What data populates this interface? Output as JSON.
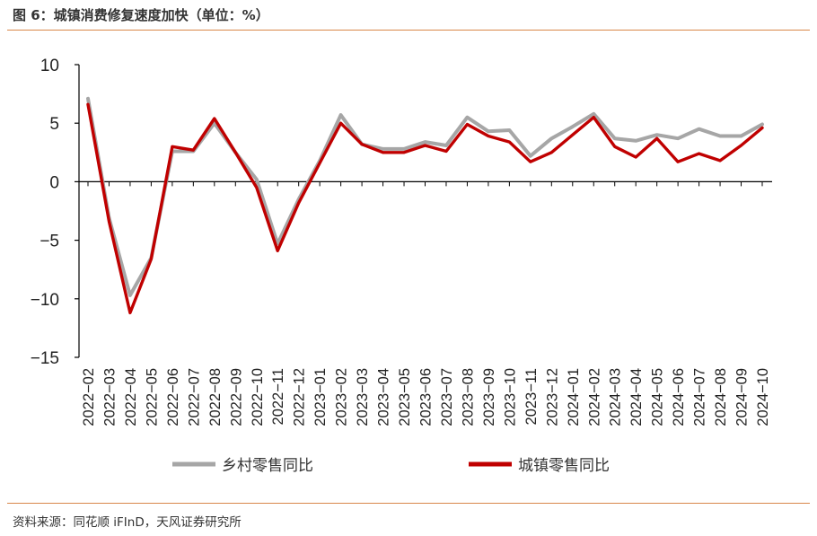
{
  "header": {
    "title": "图 6：城镇消费修复速度加快（单位：%）"
  },
  "footer": {
    "source": "资料来源：同花顺 iFInD，天风证券研究所"
  },
  "chart_data": {
    "type": "line",
    "title": "图 6：城镇消费修复速度加快（单位：%）",
    "xlabel": "",
    "ylabel": "",
    "ylim": [
      -15,
      10
    ],
    "yticks": [
      10,
      5,
      0,
      -5,
      -10,
      -15
    ],
    "ytick_labels": [
      "10",
      "5",
      "0",
      "−5",
      "−10",
      "−15"
    ],
    "grid": false,
    "legend_position": "bottom",
    "categories": [
      "2022−02",
      "2022−03",
      "2022−04",
      "2022−05",
      "2022−06",
      "2022−07",
      "2022−08",
      "2022−09",
      "2022−10",
      "2022−11",
      "2022−12",
      "2023−01",
      "2023−02",
      "2023−03",
      "2023−04",
      "2023−05",
      "2023−06",
      "2023−07",
      "2023−08",
      "2023−09",
      "2023−10",
      "2023−11",
      "2023−12",
      "2024−01",
      "2024−02",
      "2024−03",
      "2024−04",
      "2024−05",
      "2024−06",
      "2024−07",
      "2024−08",
      "2024−09",
      "2024−10"
    ],
    "series": [
      {
        "name": "乡村零售同比",
        "color": "#a6a6a6",
        "values": [
          7.1,
          -3.1,
          -9.7,
          -6.5,
          2.6,
          2.6,
          5.0,
          2.5,
          0.2,
          -5.3,
          -1.5,
          1.8,
          5.7,
          3.2,
          2.8,
          2.8,
          3.4,
          3.1,
          5.5,
          4.3,
          4.4,
          2.2,
          3.7,
          4.7,
          5.8,
          3.7,
          3.5,
          4.0,
          3.7,
          4.5,
          3.9,
          3.9,
          4.9
        ]
      },
      {
        "name": "城镇零售同比",
        "color": "#c00000",
        "values": [
          6.6,
          -3.4,
          -11.2,
          -6.6,
          3.0,
          2.7,
          5.4,
          2.5,
          -0.5,
          -5.9,
          -1.8,
          1.6,
          5.0,
          3.2,
          2.5,
          2.5,
          3.1,
          2.6,
          4.9,
          3.9,
          3.4,
          1.7,
          2.5,
          4.0,
          5.5,
          3.0,
          2.1,
          3.7,
          1.7,
          2.4,
          1.8,
          3.1,
          4.6
        ]
      }
    ]
  }
}
